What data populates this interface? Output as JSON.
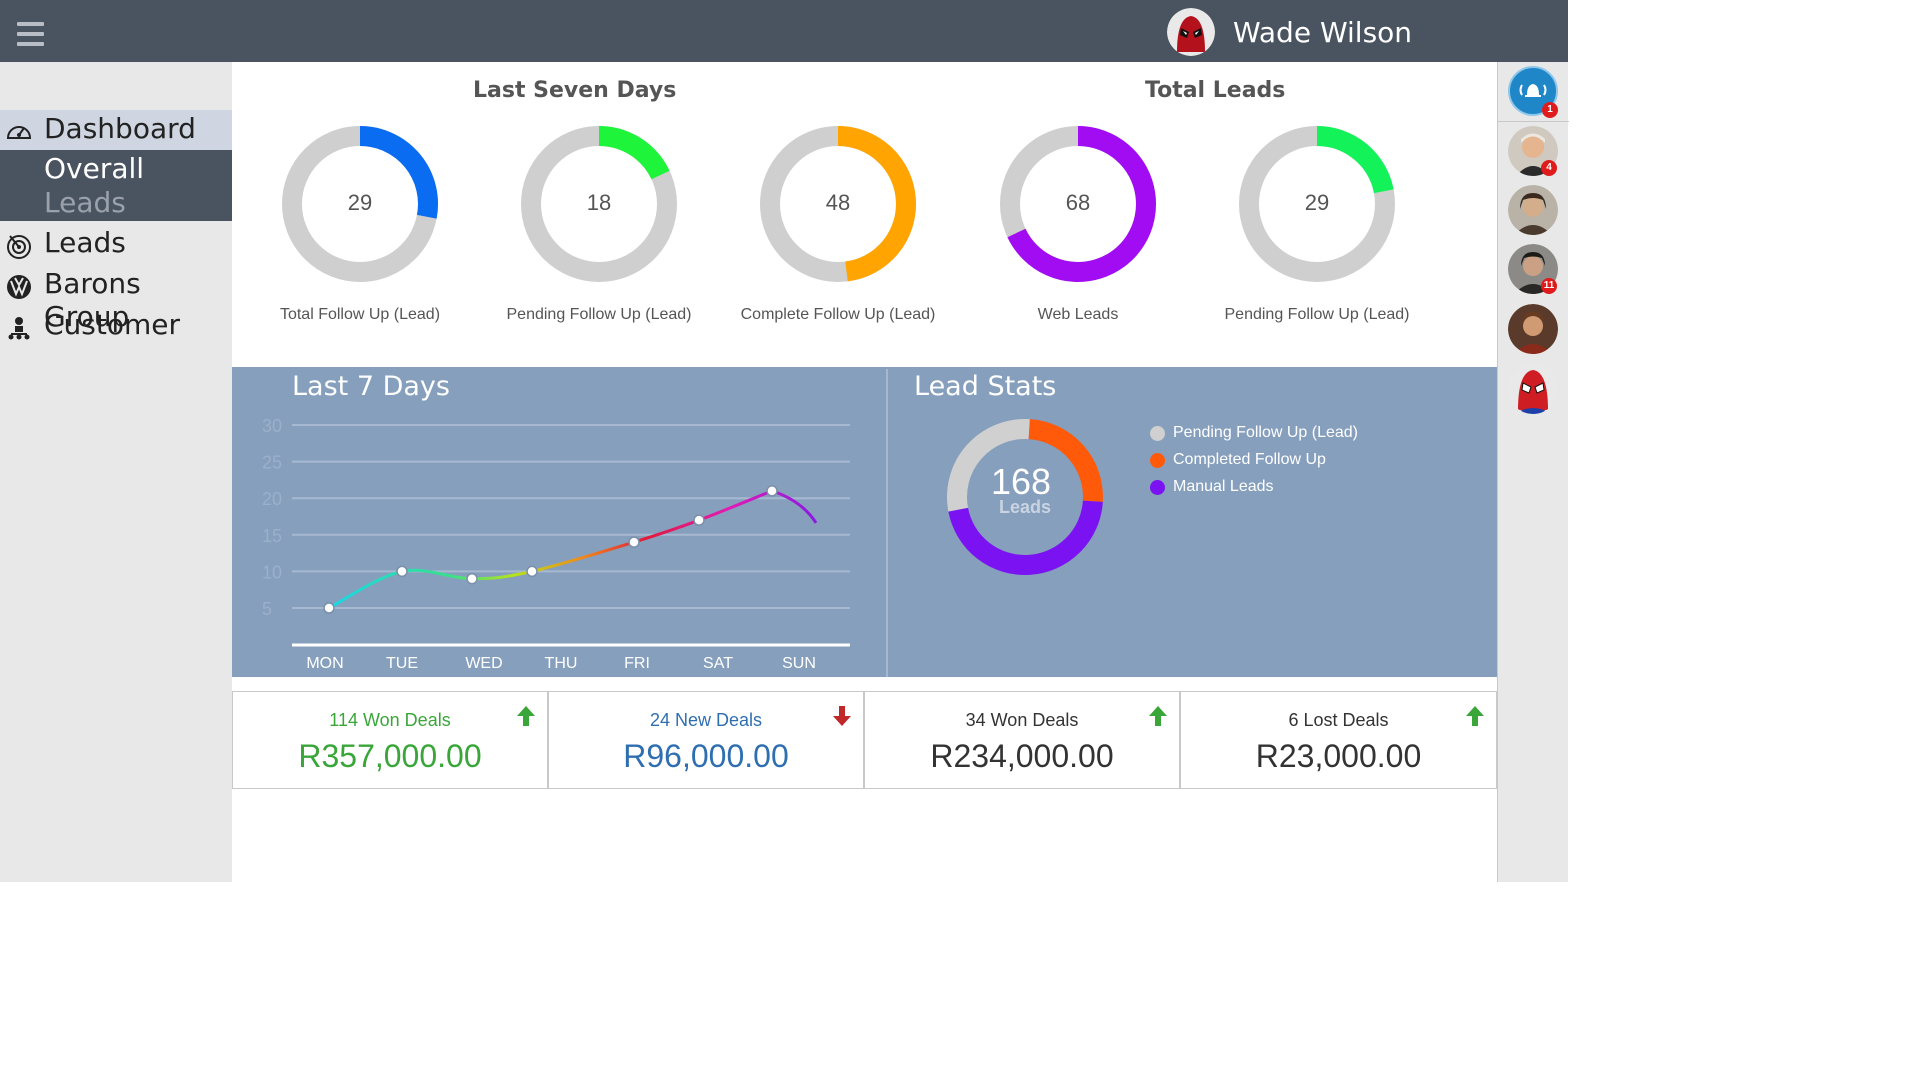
{
  "header": {
    "user_name": "Wade Wilson"
  },
  "sidebar": {
    "items": [
      {
        "label": "Dashboard",
        "icon": "dashboard-gauge-icon"
      },
      {
        "label": "Leads",
        "icon": "target-icon"
      },
      {
        "label": "Barons Group",
        "icon": "vw-logo-icon"
      },
      {
        "label": "Customer",
        "icon": "customer-hierarchy-icon"
      }
    ],
    "sub_item": {
      "line1": "Overall",
      "line2": "Leads"
    }
  },
  "rail": {
    "notification_badge": "1",
    "contacts": [
      {
        "badge": "4"
      },
      {
        "badge": ""
      },
      {
        "badge": "11"
      },
      {
        "badge": ""
      },
      {
        "badge": ""
      }
    ]
  },
  "sections": {
    "last_seven_days": "Last Seven Days",
    "total_leads": "Total Leads"
  },
  "donuts": [
    {
      "value": "29",
      "label": "Total Follow Up (Lead)",
      "fraction": 0.28,
      "color": "#0a6cf0"
    },
    {
      "value": "18",
      "label": "Pending Follow Up (Lead)",
      "fraction": 0.18,
      "color": "#1ef43a"
    },
    {
      "value": "48",
      "label": "Complete Follow Up (Lead)",
      "fraction": 0.48,
      "color": "#ffa400"
    },
    {
      "value": "68",
      "label": "Web Leads",
      "fraction": 0.68,
      "color": "#a10cf2"
    },
    {
      "value": "29",
      "label": "Pending Follow Up (Lead)",
      "fraction": 0.22,
      "color": "#14f25a"
    }
  ],
  "line_chart": {
    "title": "Last 7 Days",
    "chart_data": {
      "type": "line",
      "categories": [
        "MON",
        "TUE",
        "WED",
        "THU",
        "FRI",
        "SAT",
        "SUN"
      ],
      "points": [
        {
          "x": "MON",
          "y": 5
        },
        {
          "x": "TUE",
          "y": 10
        },
        {
          "x": "WED",
          "y": 9
        },
        {
          "x": "THU",
          "y": 10
        },
        {
          "x": "FRI",
          "y": 14
        },
        {
          "x": "SAT",
          "y": 17
        },
        {
          "x": "SUN",
          "y": 21
        }
      ],
      "yticks": [
        "30",
        "25",
        "20",
        "15",
        "10",
        "5"
      ],
      "ylim": [
        0,
        30
      ],
      "grid": true
    }
  },
  "lead_stats": {
    "title": "Lead Stats",
    "total": "168",
    "total_label": "Leads",
    "chart_data": {
      "type": "pie",
      "slices": [
        {
          "label": "Pending Follow Up (Lead)",
          "value": 0.29,
          "color": "#d0d0d0"
        },
        {
          "label": "Completed Follow Up",
          "value": 0.25,
          "color": "#ff5a0a"
        },
        {
          "label": "Manual Leads",
          "value": 0.46,
          "color": "#7b12f2"
        }
      ]
    }
  },
  "deals": [
    {
      "title": "114 Won Deals",
      "amount": "R357,000.00",
      "color": "#3aa63a",
      "trend": "up"
    },
    {
      "title": "24 New Deals",
      "amount": "R96,000.00",
      "color": "#2f6fb0",
      "trend": "down"
    },
    {
      "title": "34 Won Deals",
      "amount": "R234,000.00",
      "color": "#333333",
      "trend": "up"
    },
    {
      "title": "6 Lost Deals",
      "amount": "R23,000.00",
      "color": "#333333",
      "trend": "up"
    }
  ]
}
